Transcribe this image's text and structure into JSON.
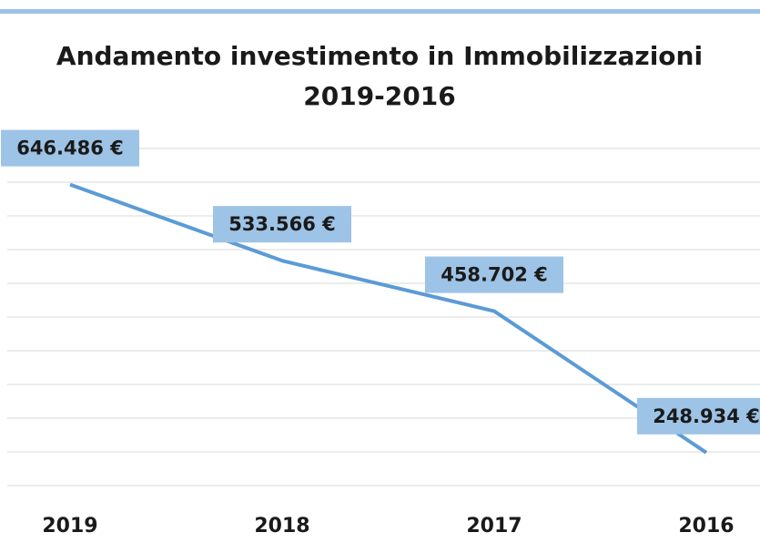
{
  "chart_data": {
    "type": "line",
    "title": "Andamento investimento in Immobilizzazioni 2019-2016",
    "categories": [
      "2019",
      "2018",
      "2017",
      "2016"
    ],
    "series": [
      {
        "name": "Immobilizzazioni",
        "color": "#5b9bd5",
        "values": [
          646486,
          533566,
          458702,
          248934
        ],
        "value_labels": [
          "646.486 €",
          "533.566 €",
          "458.702 €",
          "248.934 €"
        ]
      }
    ],
    "ylim": [
      200000,
      700000
    ],
    "yticks": [
      200000,
      250000,
      300000,
      350000,
      400000,
      450000,
      500000,
      550000,
      600000,
      650000,
      700000
    ],
    "grid": true,
    "label_color": "#9dc3e6"
  }
}
